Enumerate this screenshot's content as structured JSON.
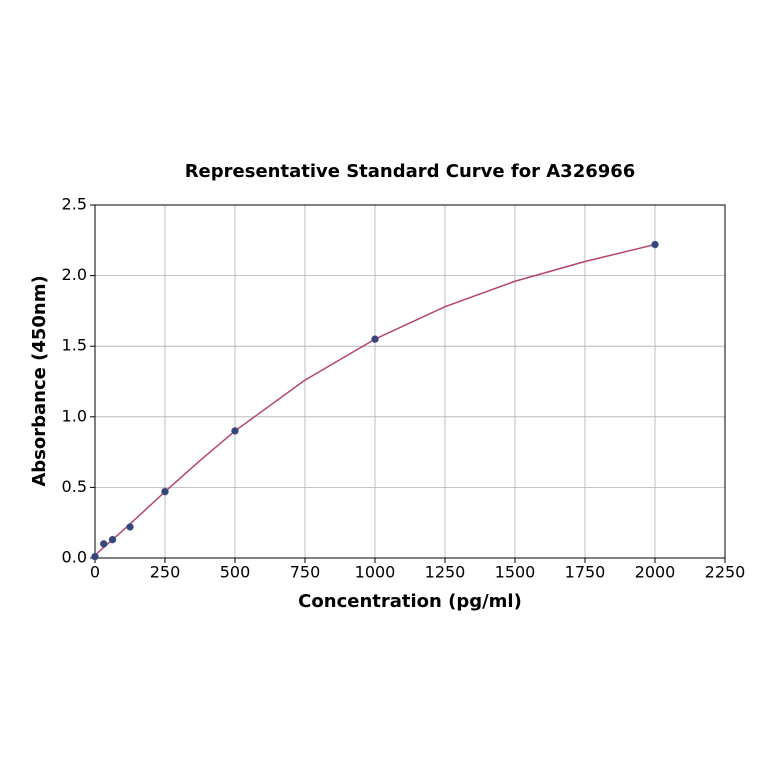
{
  "chart_data": {
    "type": "scatter",
    "title": "Representative Standard Curve for A326966",
    "xlabel": "Concentration (pg/ml)",
    "ylabel": "Absorbance (450nm)",
    "xlim": [
      0,
      2250
    ],
    "xticks": [
      0,
      250,
      500,
      750,
      1000,
      1250,
      1500,
      1750,
      2000,
      2250
    ],
    "ylim": [
      0,
      2.5
    ],
    "yticks": [
      {
        "value": 0,
        "label": "0.0"
      },
      0.5,
      {
        "value": 1,
        "label": "1.0"
      },
      1.5,
      {
        "value": 2,
        "label": "2.0"
      },
      2.5
    ],
    "grid": true,
    "series": [
      {
        "mode": "line",
        "color": "#b5446e",
        "x": [
          0,
          125,
          250,
          375,
          500,
          750,
          1000,
          1250,
          1500,
          1750,
          2000
        ],
        "values": [
          0.02,
          0.24,
          0.47,
          0.69,
          0.9,
          1.26,
          1.55,
          1.78,
          1.96,
          2.1,
          2.22
        ]
      },
      {
        "mode": "markers",
        "color": "#34477a",
        "x": [
          0,
          31.25,
          62.5,
          125,
          250,
          500,
          1000,
          2000
        ],
        "values": [
          0.01,
          0.1,
          0.13,
          0.22,
          0.47,
          0.9,
          1.55,
          2.22
        ]
      }
    ]
  }
}
